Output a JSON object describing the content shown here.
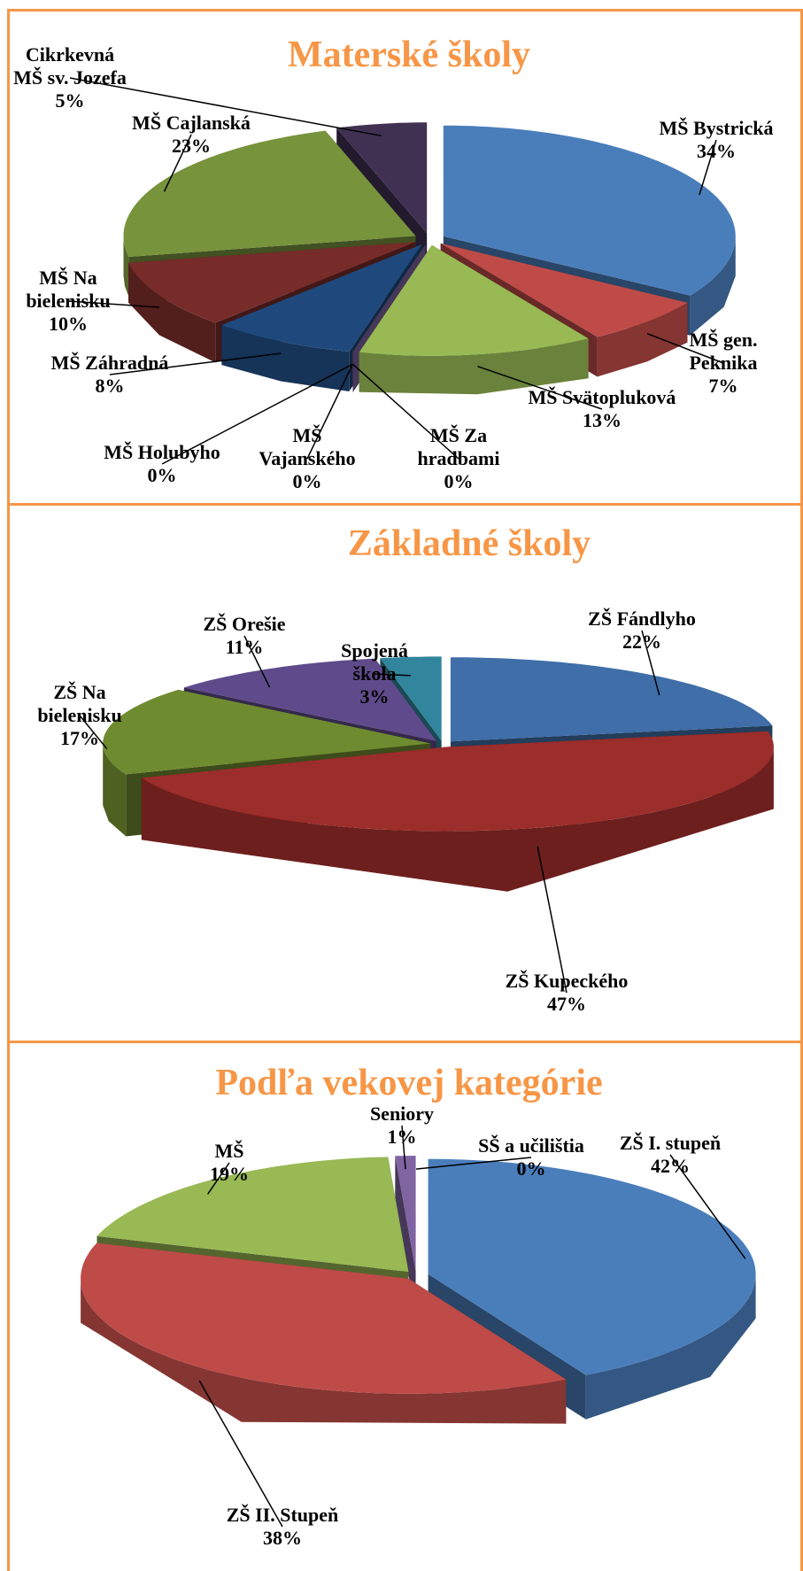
{
  "chart_data": [
    {
      "type": "pie",
      "title": "Materské školy",
      "categories": [
        "MŠ Bystrická",
        "MŠ gen. Peknika",
        "MŠ Svätopluková",
        "MŠ Za hradbami",
        "MŠ Vajanského",
        "MŠ Holubyho",
        "MŠ Záhradná",
        "MŠ Na bielenisku",
        "MŠ Cajlanská",
        "Cikrkevná MŠ sv. Jozefa"
      ],
      "values": [
        34,
        7,
        13,
        0,
        0,
        0,
        8,
        10,
        23,
        5
      ],
      "value_labels": [
        "34%",
        "7%",
        "13%",
        "0%",
        "0%",
        "0%",
        "8%",
        "10%",
        "23%",
        "5%"
      ],
      "colors": [
        "#4a7ebb",
        "#be4b48",
        "#98b954",
        "#f79646",
        "#4bacc6",
        "#8064a2",
        "#1f497d",
        "#772c2a",
        "#77933c",
        "#403152"
      ]
    },
    {
      "type": "pie",
      "title": "Základné školy",
      "categories": [
        "ZŠ Fándlyho",
        "ZŠ Kupeckého",
        "ZŠ Na bielenisku",
        "ZŠ Orešie",
        "Spojená škola"
      ],
      "values": [
        22,
        47,
        17,
        11,
        3
      ],
      "value_labels": [
        "22%",
        "47%",
        "17%",
        "11%",
        "3%"
      ],
      "colors": [
        "#3f6ea8",
        "#9b2d2a",
        "#6f8b2f",
        "#5f4b8b",
        "#31859c"
      ]
    },
    {
      "type": "pie",
      "title": "Podľa vekovej kategórie",
      "categories": [
        "ZŠ I. stupeň",
        "ZŠ II. Stupeň",
        "MŠ",
        "Seniory",
        "SŠ a učilištia"
      ],
      "values": [
        42,
        38,
        19,
        1,
        0
      ],
      "value_labels": [
        "42%",
        "38%",
        "19%",
        "1%",
        "0%"
      ],
      "colors": [
        "#4a7ebb",
        "#be4b48",
        "#98b954",
        "#8064a2",
        "#4bacc6"
      ]
    }
  ]
}
